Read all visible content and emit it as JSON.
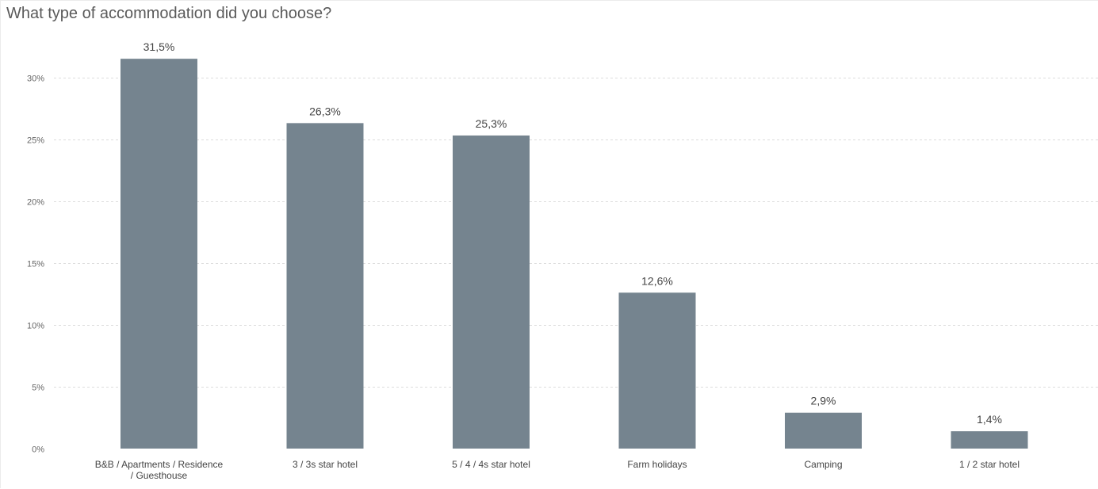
{
  "chart_data": {
    "type": "bar",
    "title": "What type of accommodation did you choose?",
    "categories": [
      [
        "B&B / Apartments / Residence",
        "/ Guesthouse"
      ],
      [
        "3 / 3s star hotel"
      ],
      [
        "5 / 4 / 4s star hotel"
      ],
      [
        "Farm holidays"
      ],
      [
        "Camping"
      ],
      [
        "1 / 2 star hotel"
      ]
    ],
    "values": [
      31.5,
      26.3,
      25.3,
      12.6,
      2.9,
      1.4
    ],
    "value_labels": [
      "31,5%",
      "26,3%",
      "25,3%",
      "12,6%",
      "2,9%",
      "1,4%"
    ],
    "ylim": [
      0,
      35
    ],
    "yticks": [
      0,
      5,
      10,
      15,
      20,
      25,
      30
    ],
    "ytick_labels": [
      "0%",
      "5%",
      "10%",
      "15%",
      "20%",
      "25%",
      "30%"
    ],
    "grid": true,
    "bar_color": "#75848f",
    "grid_color": "#dddddd"
  }
}
